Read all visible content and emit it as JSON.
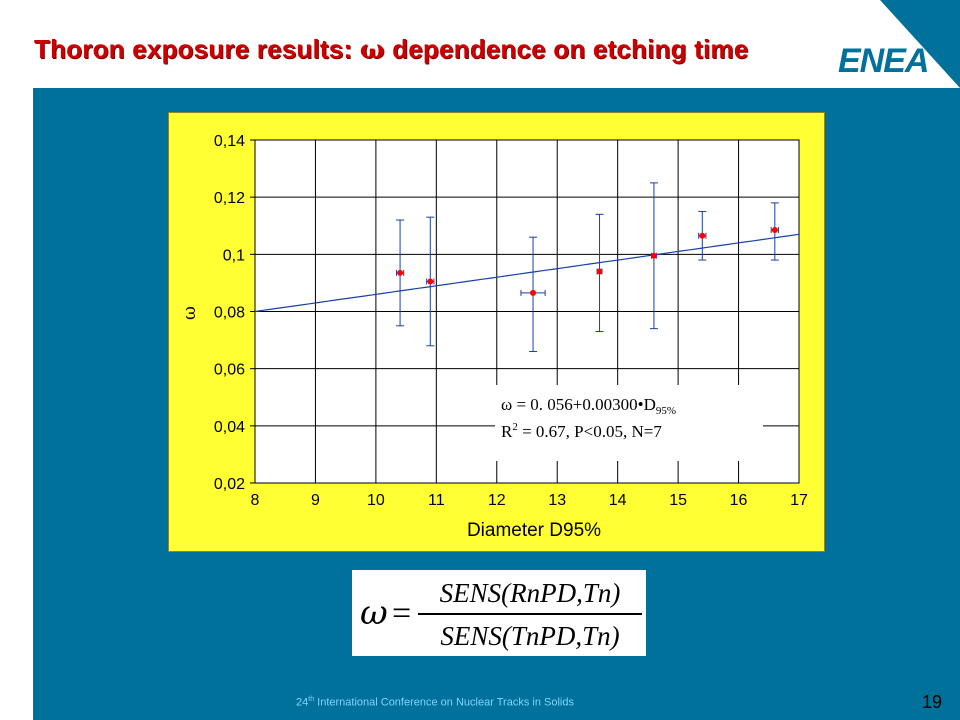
{
  "slide": {
    "title_part1": "Thoron exposure results: ",
    "title_symbol": "ω",
    "title_part2": " dependence on etching time",
    "logo_text": "ENEA",
    "footer_ordinal": "24",
    "footer_sup": "th",
    "footer_text": " International Conference on Nuclear Tracks in Solids",
    "page_number": "19",
    "formula": {
      "lhs": "ω",
      "equals": "=",
      "numerator": "SENS(RnPD,Tn)",
      "denominator": "SENS(TnPD,Tn)"
    },
    "colors": {
      "title": "#cc0000",
      "panel": "#00719a",
      "chart_background": "#ffff33",
      "fit_line": "#1a3fa8",
      "points": "#ff0000"
    }
  },
  "chart_data": {
    "type": "scatter",
    "xlabel": "Diameter D95%",
    "ylabel": "ω",
    "xlim": [
      8,
      17
    ],
    "ylim": [
      0.02,
      0.14
    ],
    "x_ticks": [
      "8",
      "9",
      "10",
      "11",
      "12",
      "13",
      "14",
      "15",
      "16",
      "17"
    ],
    "y_ticks": [
      "0,02",
      "0,04",
      "0,06",
      "0,08",
      "0,1",
      "0,12",
      "0,14"
    ],
    "grid": true,
    "points": [
      {
        "x": 10.4,
        "y": 0.0935,
        "y_low": 0.075,
        "y_high": 0.112,
        "x_err": 0.06
      },
      {
        "x": 10.9,
        "y": 0.0905,
        "y_low": 0.068,
        "y_high": 0.113,
        "x_err": 0.06
      },
      {
        "x": 12.6,
        "y": 0.0865,
        "y_low": 0.066,
        "y_high": 0.106,
        "x_err": 0.2
      },
      {
        "x": 13.7,
        "y": 0.094,
        "y_low": 0.073,
        "y_high": 0.114,
        "x_err": 0.04
      },
      {
        "x": 14.6,
        "y": 0.0995,
        "y_low": 0.074,
        "y_high": 0.125,
        "x_err": 0.04
      },
      {
        "x": 15.4,
        "y": 0.1065,
        "y_low": 0.098,
        "y_high": 0.115,
        "x_err": 0.06
      },
      {
        "x": 16.6,
        "y": 0.1085,
        "y_low": 0.098,
        "y_high": 0.118,
        "x_err": 0.06
      }
    ],
    "fit": {
      "intercept": 0.056,
      "slope": 0.003,
      "x_range": [
        8,
        17
      ]
    },
    "annotation": {
      "line1_symbol": "ω",
      "line1_text": " = 0. 056+0.00300",
      "line1_dot": "•",
      "line1_var": "D",
      "line1_sub": "95%",
      "line2_var": "R",
      "line2_sup": "2",
      "line2_text": " = 0.67, P<0.05, N=7"
    }
  }
}
